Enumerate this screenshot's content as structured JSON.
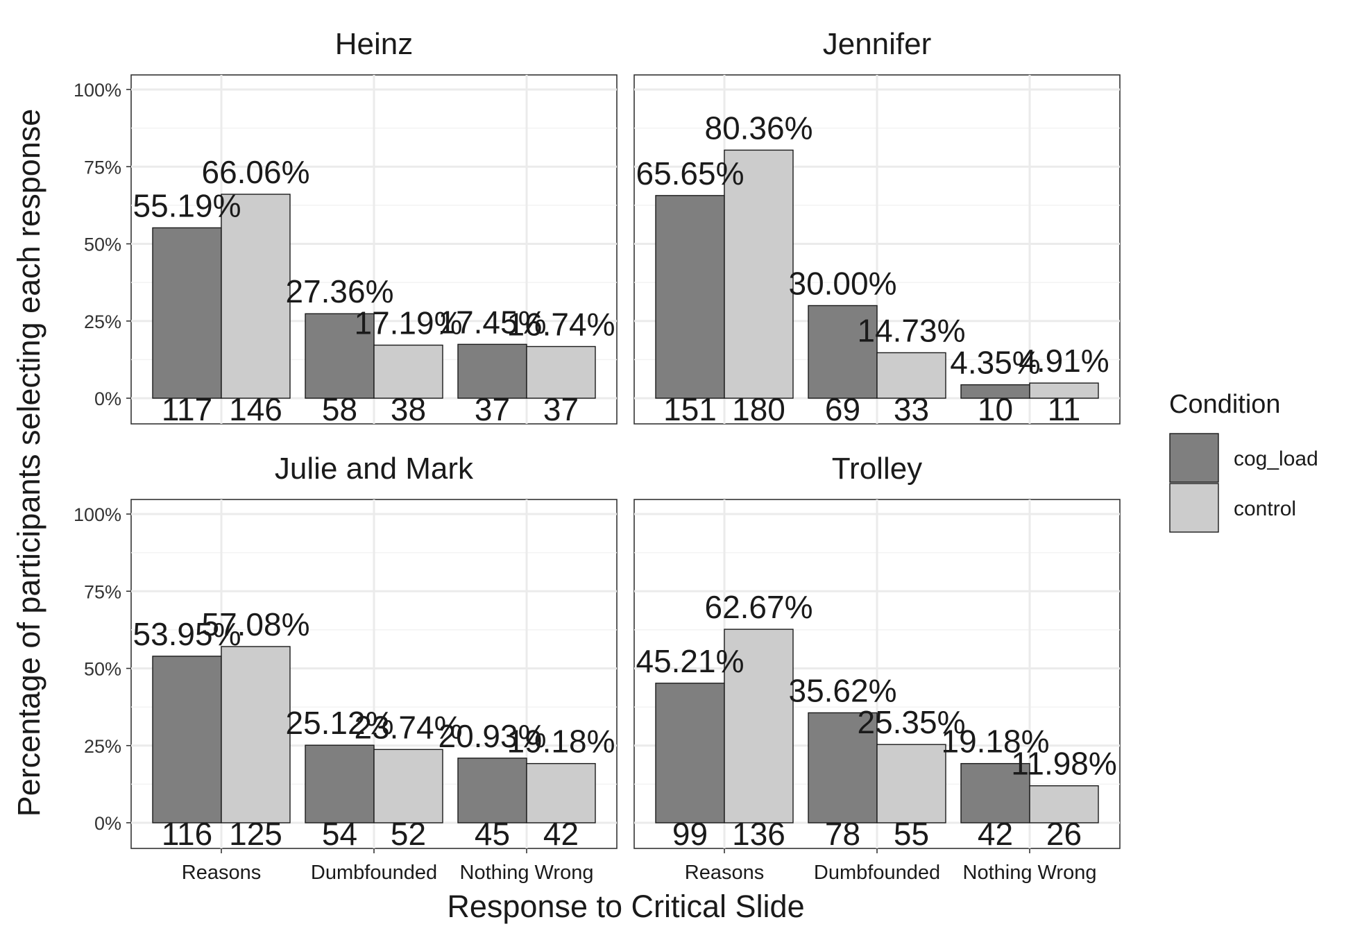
{
  "chart_data": {
    "type": "bar",
    "facets": [
      "Heinz",
      "Jennifer",
      "Julie and Mark",
      "Trolley"
    ],
    "categories": [
      "Reasons",
      "Dumbfounded",
      "Nothing Wrong"
    ],
    "xlabel": "Response to Critical Slide",
    "ylabel": "Percentage of participants selecting each response",
    "ylim": [
      0,
      1
    ],
    "yticks": [
      0,
      0.25,
      0.5,
      0.75,
      1.0
    ],
    "ytick_labels": [
      "0%",
      "25%",
      "50%",
      "75%",
      "100%"
    ],
    "grid": true,
    "legend": {
      "title": "Condition",
      "position": "right",
      "entries": [
        {
          "name": "cog_load",
          "color": "#7f7f7f"
        },
        {
          "name": "control",
          "color": "#cccccc"
        }
      ]
    },
    "panels": [
      {
        "title": "Heinz",
        "series": [
          {
            "name": "cog_load",
            "values": [
              0.5519,
              0.2736,
              0.1745
            ],
            "pct_labels": [
              "55.19%",
              "27.36%",
              "17.45%"
            ],
            "counts": [
              "117",
              "58",
              "37"
            ]
          },
          {
            "name": "control",
            "values": [
              0.6606,
              0.1719,
              0.1674
            ],
            "pct_labels": [
              "66.06%",
              "17.19%",
              "16.74%"
            ],
            "counts": [
              "146",
              "38",
              "37"
            ]
          }
        ]
      },
      {
        "title": "Jennifer",
        "series": [
          {
            "name": "cog_load",
            "values": [
              0.6565,
              0.3,
              0.0435
            ],
            "pct_labels": [
              "65.65%",
              "30.00%",
              "4.35%"
            ],
            "counts": [
              "151",
              "69",
              "10"
            ]
          },
          {
            "name": "control",
            "values": [
              0.8036,
              0.1473,
              0.0491
            ],
            "pct_labels": [
              "80.36%",
              "14.73%",
              "4.91%"
            ],
            "counts": [
              "180",
              "33",
              "11"
            ]
          }
        ]
      },
      {
        "title": "Julie and Mark",
        "series": [
          {
            "name": "cog_load",
            "values": [
              0.5395,
              0.2512,
              0.2093
            ],
            "pct_labels": [
              "53.95%",
              "25.12%",
              "20.93%"
            ],
            "counts": [
              "116",
              "54",
              "45"
            ]
          },
          {
            "name": "control",
            "values": [
              0.5708,
              0.2374,
              0.1918
            ],
            "pct_labels": [
              "57.08%",
              "23.74%",
              "19.18%"
            ],
            "counts": [
              "125",
              "52",
              "42"
            ]
          }
        ]
      },
      {
        "title": "Trolley",
        "series": [
          {
            "name": "cog_load",
            "values": [
              0.4521,
              0.3562,
              0.1918
            ],
            "pct_labels": [
              "45.21%",
              "35.62%",
              "19.18%"
            ],
            "counts": [
              "99",
              "78",
              "42"
            ]
          },
          {
            "name": "control",
            "values": [
              0.6267,
              0.2535,
              0.1198
            ],
            "pct_labels": [
              "62.67%",
              "25.35%",
              "11.98%"
            ],
            "counts": [
              "136",
              "55",
              "26"
            ]
          }
        ]
      }
    ]
  }
}
